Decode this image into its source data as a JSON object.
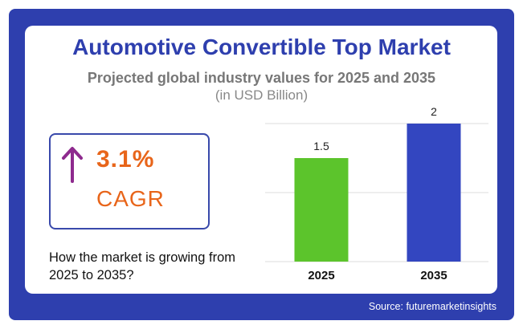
{
  "title": "Automotive Convertible Top Market",
  "subtitle": "Projected global industry values for 2025 and 2035",
  "unit": "(in USD Billion)",
  "cagr": {
    "value": "3.1%",
    "label": "CAGR"
  },
  "caption": "How the market is growing from 2025 to 2035?",
  "source": "Source: futuremarketinsights",
  "colors": {
    "frame": "#2e3fae",
    "accent": "#e8651a",
    "arrow": "#8e2a8e"
  },
  "chart_data": {
    "type": "bar",
    "categories": [
      "2025",
      "2035"
    ],
    "values": [
      1.5,
      2
    ],
    "value_labels": [
      "1.5",
      "2"
    ],
    "bar_colors": [
      "#5cc42c",
      "#3346c0"
    ],
    "ylim": [
      0,
      2
    ],
    "grid": true,
    "legend": "none"
  }
}
